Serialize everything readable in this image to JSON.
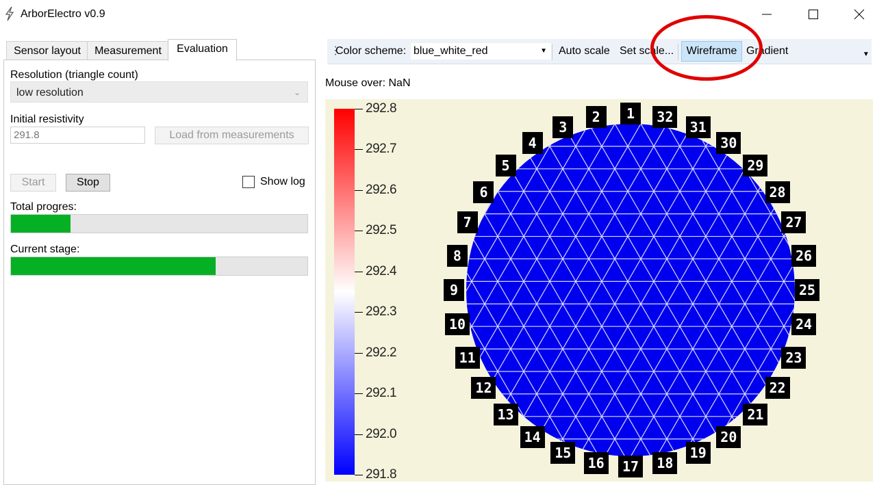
{
  "window": {
    "title": "ArborElectro v0.9",
    "icons": {
      "app": "lightning-icon",
      "minimize": "minimize-icon",
      "maximize": "maximize-icon",
      "close": "close-icon"
    }
  },
  "tabs": [
    {
      "label": "Sensor layout",
      "active": false
    },
    {
      "label": "Measurement",
      "active": false
    },
    {
      "label": "Evaluation",
      "active": true
    }
  ],
  "evaluation": {
    "resolution_label": "Resolution (triangle count)",
    "resolution_value": "low resolution",
    "initial_resistivity_label": "Initial resistivity",
    "initial_resistivity_value": "291.8",
    "load_button": "Load from measurements",
    "start_button": "Start",
    "stop_button": "Stop",
    "show_log_label": "Show log",
    "show_log_checked": false,
    "total_progress_label": "Total progres:",
    "total_progress_fraction": 0.2,
    "current_stage_label": "Current stage:",
    "current_stage_fraction": 0.69
  },
  "toolbar": {
    "color_scheme_label": "Color scheme:",
    "color_scheme_value": "blue_white_red",
    "auto_scale": "Auto scale",
    "set_scale": "Set scale...",
    "wireframe": "Wireframe",
    "wireframe_checked": true,
    "gradient": "Gradient"
  },
  "mouse_over": "Mouse over: NaN",
  "plot": {
    "colorbar_ticks": [
      "292.8",
      "292.7",
      "292.6",
      "292.5",
      "292.4",
      "292.3",
      "292.2",
      "292.1",
      "292.0",
      "291.8"
    ],
    "colors": {
      "top": "#ff0000",
      "middle": "#ffffff",
      "bottom": "#0000ff",
      "mesh": "#0000ee",
      "background": "#f5f3dc"
    },
    "electrodes": [
      "1",
      "2",
      "3",
      "4",
      "5",
      "6",
      "7",
      "8",
      "9",
      "10",
      "11",
      "12",
      "13",
      "14",
      "15",
      "16",
      "17",
      "18",
      "19",
      "20",
      "21",
      "22",
      "23",
      "24",
      "25",
      "26",
      "27",
      "28",
      "29",
      "30",
      "31",
      "32"
    ]
  },
  "annotation_color": "#e00000"
}
